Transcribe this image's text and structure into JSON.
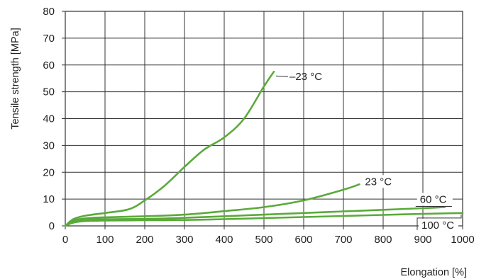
{
  "chart_data": {
    "type": "line",
    "title": "",
    "xlabel": "Elongation [%]",
    "ylabel": "Tensile strength [MPa]",
    "xlim": [
      0,
      1000
    ],
    "ylim": [
      0,
      80
    ],
    "xticks": [
      0,
      100,
      200,
      300,
      400,
      500,
      600,
      700,
      800,
      900,
      1000
    ],
    "yticks": [
      0,
      10,
      20,
      30,
      40,
      50,
      60,
      70,
      80
    ],
    "grid": true,
    "line_color": "#5aaa3a",
    "series": [
      {
        "name": "–23 °C",
        "x": [
          0,
          20,
          50,
          100,
          160,
          200,
          250,
          300,
          350,
          400,
          450,
          500,
          525
        ],
        "y": [
          0,
          2.5,
          3.8,
          4.8,
          6.2,
          9.5,
          15,
          22,
          28.5,
          33,
          40,
          52,
          57.5
        ]
      },
      {
        "name": "23 °C",
        "x": [
          0,
          20,
          50,
          100,
          200,
          300,
          400,
          500,
          600,
          700,
          740
        ],
        "y": [
          0,
          2,
          2.8,
          3.2,
          3.6,
          4.2,
          5.5,
          7,
          9.5,
          13.5,
          15.5
        ]
      },
      {
        "name": "60 °C",
        "x": [
          0,
          20,
          50,
          100,
          200,
          300,
          400,
          500,
          600,
          700,
          800,
          900,
          955
        ],
        "y": [
          0,
          1.5,
          2.3,
          2.5,
          2.6,
          3,
          3.6,
          4.2,
          4.8,
          5.4,
          6,
          6.6,
          7
        ]
      },
      {
        "name": "100 °C",
        "x": [
          0,
          20,
          50,
          100,
          200,
          300,
          400,
          500,
          600,
          700,
          800,
          900,
          1000
        ],
        "y": [
          0,
          1.2,
          1.8,
          2,
          2.1,
          2.2,
          2.5,
          2.9,
          3.3,
          3.7,
          4.1,
          4.5,
          4.8
        ]
      }
    ]
  }
}
